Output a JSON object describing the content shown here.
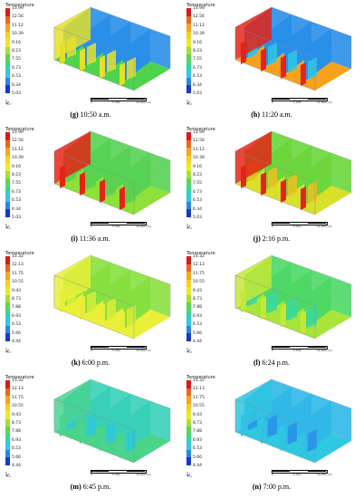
{
  "legend_title": "Temperature",
  "panels": [
    {
      "id": "g",
      "time": "10:50 a.m.",
      "ticks": [
        "13.99",
        "12.56",
        "11.12",
        "10.39",
        "9.16",
        "8.23",
        "7.55",
        "6.73",
        "6.53",
        "6.34",
        "5.03"
      ],
      "scale": [
        "0",
        "5.000",
        "10.000 (m)"
      ],
      "floor": "#4fd34f",
      "wall": "#2a8fe8",
      "end": "#e4e02a",
      "patch": "#e6e22c"
    },
    {
      "id": "h",
      "time": "11:20 a.m.",
      "ticks": [
        "13.99",
        "12.56",
        "11.12",
        "10.39",
        "9.16",
        "8.23",
        "7.55",
        "6.73",
        "6.53",
        "6.34",
        "5.03"
      ],
      "scale": [
        "0",
        "5.000",
        "10.000 (m)"
      ],
      "floor": "#f7a21c",
      "wall": "#2a8fe8",
      "end": "#e52418",
      "patch": "#2fc8e8"
    },
    {
      "id": "i",
      "time": "11:36 a.m.",
      "ticks": [
        "13.99",
        "12.56",
        "11.12",
        "10.39",
        "9.16",
        "8.23",
        "7.55",
        "6.73",
        "6.53",
        "6.34",
        "5.03"
      ],
      "scale": [
        "0",
        "5.000",
        "10.000 (m)"
      ],
      "floor": "#8ee03a",
      "wall": "#58d254",
      "end": "#e52418",
      "patch": "#5ed04e"
    },
    {
      "id": "j",
      "time": "2:16 p.m.",
      "ticks": [
        "13.99",
        "12.56",
        "11.12",
        "10.39",
        "9.16",
        "8.23",
        "7.55",
        "6.73",
        "6.53",
        "6.34",
        "5.03"
      ],
      "scale": [
        "0",
        "5.000",
        "10.000 (m)"
      ],
      "floor": "#d8e02a",
      "wall": "#6cd63c",
      "end": "#e52418",
      "patch": "#f0c020"
    },
    {
      "id": "k",
      "time": "6:00 p.m.",
      "ticks": [
        "13.32",
        "12.13",
        "11.75",
        "10.55",
        "9.43",
        "8.73",
        "7.88",
        "6.93",
        "6.53",
        "5.66",
        "4.44"
      ],
      "scale": [
        "0",
        "5.000",
        "10.000 (m)"
      ],
      "floor": "#eaf03a",
      "wall": "#88e040",
      "end": "#e8ee3a",
      "patch": "#d8ec38"
    },
    {
      "id": "l",
      "time": "6:24 p.m.",
      "ticks": [
        "13.32",
        "12.13",
        "11.75",
        "10.55",
        "9.43",
        "8.73",
        "7.88",
        "6.93",
        "6.53",
        "5.66",
        "4.44"
      ],
      "scale": [
        "0",
        "5.000",
        "10.000 (m)"
      ],
      "floor": "#a8e43a",
      "wall": "#4ed866",
      "end": "#c4e838",
      "patch": "#3cd8a0"
    },
    {
      "id": "m",
      "time": "6:45 p.m.",
      "ticks": [
        "13.32",
        "12.13",
        "11.75",
        "10.55",
        "9.43",
        "8.73",
        "7.88",
        "6.93",
        "6.53",
        "5.66",
        "4.44"
      ],
      "scale": [
        "0",
        "5.000",
        "10.000 (m)"
      ],
      "floor": "#4ad488",
      "wall": "#38d0b8",
      "end": "#4ad490",
      "patch": "#30c8d8"
    },
    {
      "id": "n",
      "time": "7:00 p.m.",
      "ticks": [
        "13.32",
        "12.13",
        "11.75",
        "10.55",
        "9.43",
        "8.73",
        "7.88",
        "6.93",
        "6.53",
        "5.66",
        "4.44"
      ],
      "scale": [
        "0",
        "5.000",
        "10.000 (m)"
      ],
      "floor": "#2ec8e0",
      "wall": "#30b8e8",
      "end": "#30c4e0",
      "patch": "#2890e8"
    }
  ],
  "legend_colors": [
    "#d81c14",
    "#f0641c",
    "#f8a41c",
    "#f8d020",
    "#e8ec28",
    "#a8e030",
    "#5cd850",
    "#30d8a0",
    "#30c8e8",
    "#2888e8",
    "#1838c8"
  ]
}
